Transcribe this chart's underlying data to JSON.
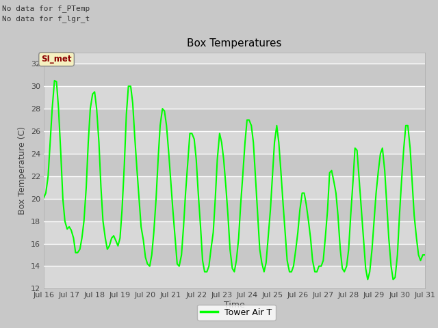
{
  "title": "Box Temperatures",
  "xlabel": "Time",
  "ylabel": "Box Temperature (C)",
  "ylim": [
    12,
    33
  ],
  "yticks": [
    12,
    14,
    16,
    18,
    20,
    22,
    24,
    26,
    28,
    30,
    32
  ],
  "background_color": "#c8c8c8",
  "plot_bg_color": "#d8d8d8",
  "band_light": "#d8d8d8",
  "band_dark": "#c8c8c8",
  "line_color": "#00ff00",
  "line_width": 1.5,
  "no_data_text_1": "No data for f_PTemp",
  "no_data_text_2": "No data for f_lgr_t",
  "si_met_label": "SI_met",
  "legend_label": "Tower Air T",
  "x_tick_labels": [
    "Jul 16",
    "Jul 17",
    "Jul 18",
    "Jul 19",
    "Jul 20",
    "Jul 21",
    "Jul 22",
    "Jul 23",
    "Jul 24",
    "Jul 25",
    "Jul 26",
    "Jul 27",
    "Jul 28",
    "Jul 29",
    "Jul 30",
    "Jul 31"
  ],
  "x_tick_positions": [
    0,
    1,
    2,
    3,
    4,
    5,
    6,
    7,
    8,
    9,
    10,
    11,
    12,
    13,
    14,
    15
  ],
  "data_x": [
    0.0,
    0.08,
    0.17,
    0.25,
    0.33,
    0.42,
    0.5,
    0.58,
    0.67,
    0.75,
    0.83,
    0.92,
    1.0,
    1.08,
    1.17,
    1.25,
    1.33,
    1.42,
    1.5,
    1.58,
    1.67,
    1.75,
    1.83,
    1.92,
    2.0,
    2.08,
    2.17,
    2.25,
    2.33,
    2.42,
    2.5,
    2.58,
    2.67,
    2.75,
    2.83,
    2.92,
    3.0,
    3.08,
    3.17,
    3.25,
    3.33,
    3.42,
    3.5,
    3.58,
    3.67,
    3.75,
    3.83,
    3.92,
    4.0,
    4.08,
    4.17,
    4.25,
    4.33,
    4.42,
    4.5,
    4.58,
    4.67,
    4.75,
    4.83,
    4.92,
    5.0,
    5.08,
    5.17,
    5.25,
    5.33,
    5.42,
    5.5,
    5.58,
    5.67,
    5.75,
    5.83,
    5.92,
    6.0,
    6.08,
    6.17,
    6.25,
    6.33,
    6.42,
    6.5,
    6.58,
    6.67,
    6.75,
    6.83,
    6.92,
    7.0,
    7.08,
    7.17,
    7.25,
    7.33,
    7.42,
    7.5,
    7.58,
    7.67,
    7.75,
    7.83,
    7.92,
    8.0,
    8.08,
    8.17,
    8.25,
    8.33,
    8.42,
    8.5,
    8.58,
    8.67,
    8.75,
    8.83,
    8.92,
    9.0,
    9.08,
    9.17,
    9.25,
    9.33,
    9.42,
    9.5,
    9.58,
    9.67,
    9.75,
    9.83,
    9.92,
    10.0,
    10.08,
    10.17,
    10.25,
    10.33,
    10.42,
    10.5,
    10.58,
    10.67,
    10.75,
    10.83,
    10.92,
    11.0,
    11.08,
    11.17,
    11.25,
    11.33,
    11.42,
    11.5,
    11.58,
    11.67,
    11.75,
    11.83,
    11.92,
    12.0,
    12.08,
    12.17,
    12.25,
    12.33,
    12.42,
    12.5,
    12.58,
    12.67,
    12.75,
    12.83,
    12.92,
    13.0,
    13.08,
    13.17,
    13.25,
    13.33,
    13.42,
    13.5,
    13.58,
    13.67,
    13.75,
    13.83,
    13.92,
    14.0,
    14.08,
    14.17,
    14.25,
    14.33,
    14.42,
    14.5,
    14.58,
    14.67,
    14.75,
    14.83,
    14.92,
    15.0
  ],
  "data_y": [
    20.1,
    20.5,
    22.0,
    25.0,
    28.0,
    30.5,
    30.4,
    28.0,
    24.0,
    20.0,
    18.0,
    17.3,
    17.5,
    17.2,
    16.5,
    15.2,
    15.2,
    15.5,
    16.5,
    18.0,
    21.0,
    25.0,
    28.0,
    29.3,
    29.5,
    28.0,
    25.0,
    21.0,
    18.0,
    16.5,
    15.5,
    15.8,
    16.5,
    16.7,
    16.3,
    15.8,
    16.5,
    19.0,
    23.0,
    27.5,
    30.0,
    30.0,
    28.5,
    25.5,
    22.5,
    20.0,
    17.5,
    16.3,
    14.8,
    14.2,
    14.0,
    15.0,
    17.0,
    20.0,
    23.5,
    26.5,
    28.0,
    27.8,
    26.5,
    24.0,
    21.5,
    19.0,
    16.5,
    14.2,
    14.0,
    15.0,
    17.5,
    20.5,
    23.3,
    25.8,
    25.8,
    25.3,
    23.5,
    20.5,
    17.5,
    14.5,
    13.5,
    13.5,
    14.0,
    15.5,
    17.0,
    20.0,
    23.5,
    25.8,
    25.0,
    23.5,
    21.0,
    18.5,
    15.5,
    13.8,
    13.5,
    14.5,
    16.5,
    19.5,
    22.0,
    25.0,
    27.0,
    27.0,
    26.5,
    25.0,
    22.0,
    18.5,
    15.5,
    14.3,
    13.5,
    14.3,
    16.5,
    19.0,
    22.0,
    25.0,
    26.5,
    25.0,
    22.5,
    19.5,
    17.0,
    14.5,
    13.5,
    13.5,
    14.0,
    15.5,
    17.0,
    19.0,
    20.5,
    20.5,
    19.5,
    18.0,
    16.5,
    14.5,
    13.5,
    13.5,
    14.0,
    14.0,
    14.5,
    16.5,
    19.0,
    22.3,
    22.5,
    21.5,
    20.5,
    18.5,
    15.5,
    13.8,
    13.5,
    14.0,
    15.5,
    18.5,
    21.5,
    24.5,
    24.3,
    21.5,
    19.0,
    16.5,
    13.8,
    12.8,
    13.5,
    15.5,
    18.0,
    20.5,
    22.5,
    24.0,
    24.5,
    22.5,
    19.5,
    16.5,
    14.0,
    12.8,
    13.0,
    15.0,
    18.5,
    21.5,
    24.5,
    26.5,
    26.5,
    24.5,
    21.5,
    18.5,
    16.5,
    15.0,
    14.5,
    15.0,
    15.0
  ]
}
